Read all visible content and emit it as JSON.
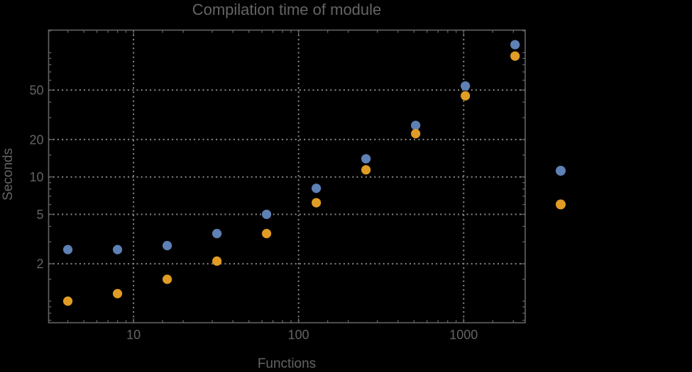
{
  "chart_data": {
    "type": "scatter",
    "title": "Compilation time of module",
    "xlabel": "Functions",
    "ylabel": "Seconds",
    "x_scale": "log",
    "y_scale": "log",
    "xlim": [
      3.06,
      2360
    ],
    "ylim": [
      0.67,
      152
    ],
    "x_ticks": [
      10,
      100,
      1000
    ],
    "y_ticks": [
      2,
      5,
      10,
      20,
      50
    ],
    "grid": true,
    "x": [
      4,
      8,
      16,
      32,
      64,
      128,
      256,
      512,
      1024,
      2048
    ],
    "series": [
      {
        "id": "series-blue",
        "label": "",
        "color": "#5E81B5",
        "values": [
          2.6,
          2.6,
          2.8,
          3.5,
          5.0,
          8.1,
          14,
          26,
          54,
          116
        ]
      },
      {
        "id": "series-orange",
        "label": "",
        "color": "#E09C24",
        "values": [
          1.0,
          1.15,
          1.5,
          2.1,
          3.5,
          6.2,
          11.4,
          22.3,
          45,
          94
        ]
      }
    ],
    "legend_position": "right-of-plot",
    "legend_labels_visible": false
  },
  "style": {
    "background": "#000000",
    "text_color": "#646464",
    "frame_color": "#636363",
    "grid_color": "#8a8a8a"
  }
}
